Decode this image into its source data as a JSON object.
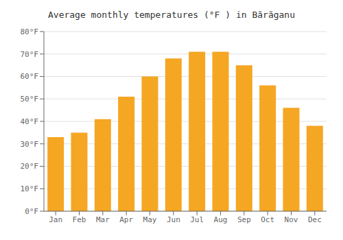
{
  "chart_data": {
    "type": "bar",
    "title": "Average monthly temperatures (°F ) in Bărăganu",
    "categories": [
      "Jan",
      "Feb",
      "Mar",
      "Apr",
      "May",
      "Jun",
      "Jul",
      "Aug",
      "Sep",
      "Oct",
      "Nov",
      "Dec"
    ],
    "values": [
      33,
      35,
      41,
      51,
      60,
      68,
      71,
      71,
      65,
      56,
      46,
      38
    ],
    "color": "#F5A623",
    "ylim": [
      0,
      80
    ],
    "yticks": [
      {
        "value": 0,
        "label": "0°F"
      },
      {
        "value": 10,
        "label": "10°F"
      },
      {
        "value": 20,
        "label": "20°F"
      },
      {
        "value": 30,
        "label": "30°F"
      },
      {
        "value": 40,
        "label": "40°F"
      },
      {
        "value": 50,
        "label": "50°F"
      },
      {
        "value": 60,
        "label": "60°F"
      },
      {
        "value": 70,
        "label": "70°F"
      },
      {
        "value": 80,
        "label": "80°F"
      }
    ],
    "grid": true
  }
}
